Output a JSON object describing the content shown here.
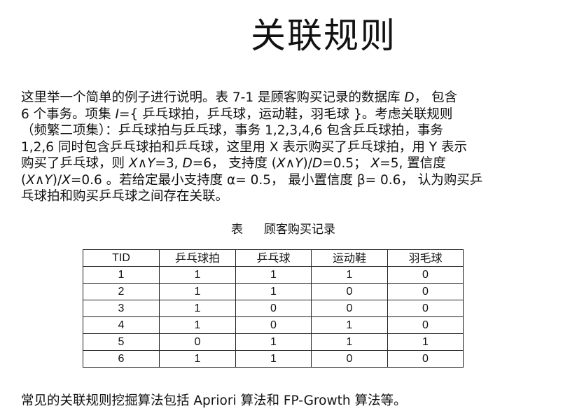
{
  "title": "关联规则",
  "paragraph": {
    "l1a": "这里举一个简单的例子进行说明。表 7-1 是顾客购买记录的数据库 ",
    "l1b": "D",
    "l1c": "， 包含",
    "l2a": "6 个事务。项集 ",
    "l2b": "I",
    "l2c": "={ 乒乓球拍，乒乓球，运动鞋，羽毛球 }。考虑关联规则",
    "l3": "（频繁二项集）：乒乓球拍与乒乓球，事务 1,2,3,4,6 包含乒乓球拍，事务",
    "l4": "1,2,6 同时包含乒乓球拍和乒乓球，这里用 X 表示购买了乒乓球拍，用 Y 表示",
    "l5a": "购买了乒乓球，则 ",
    "l5b": "X∧Y",
    "l5c": "=3, ",
    "l5d": "D",
    "l5e": "=6， 支持度 (",
    "l5f": "X∧Y",
    "l5g": ")/",
    "l5h": "D",
    "l5i": "=0.5； ",
    "l5j": "X",
    "l5k": "=5,  置信度",
    "l6a": "(",
    "l6b": "X∧Y",
    "l6c": ")/",
    "l6d": "X",
    "l6e": "=0.6 。若给定最小支持度 α= 0.5， 最小置信度 β= 0.6， 认为购买乒",
    "l7": "乓球拍和购买乒乓球之间存在关联。"
  },
  "caption": {
    "label": "表",
    "text": "顾客购买记录"
  },
  "table": {
    "headers": [
      "TID",
      "乒乓球拍",
      "乒乓球",
      "运动鞋",
      "羽毛球"
    ],
    "rows": [
      [
        "1",
        "1",
        "1",
        "1",
        "0"
      ],
      [
        "2",
        "1",
        "1",
        "0",
        "0"
      ],
      [
        "3",
        "1",
        "0",
        "0",
        "0"
      ],
      [
        "4",
        "1",
        "0",
        "1",
        "0"
      ],
      [
        "5",
        "0",
        "1",
        "1",
        "1"
      ],
      [
        "6",
        "1",
        "1",
        "0",
        "0"
      ]
    ]
  },
  "footer": "常见的关联规则挖掘算法包括 Apriori 算法和 FP-Growth 算法等。"
}
